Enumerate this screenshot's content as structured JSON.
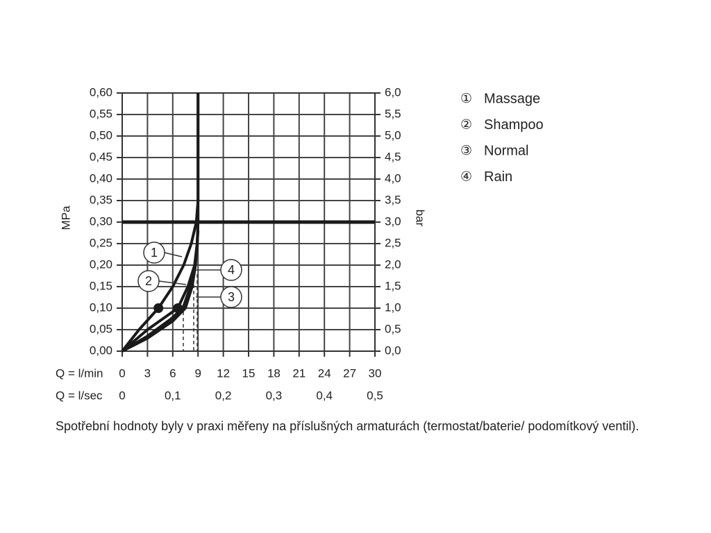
{
  "chart_data": {
    "type": "line",
    "xlabel": "Q = l/min",
    "x2label": "Q = l/sec",
    "ylabel": "MPa",
    "y2label": "bar",
    "xlim": [
      0,
      30
    ],
    "xticks": [
      0,
      3,
      6,
      9,
      12,
      15,
      18,
      21,
      24,
      27,
      30
    ],
    "x2lim": [
      0,
      0.5
    ],
    "x2ticks": [
      0,
      {
        "value": 0.1,
        "label": "0,1"
      },
      {
        "value": 0.2,
        "label": "0,2"
      },
      {
        "value": 0.3,
        "label": "0,3"
      },
      {
        "value": 0.4,
        "label": "0,4"
      },
      {
        "value": 0.5,
        "label": "0,5"
      }
    ],
    "ylim": [
      0,
      0.6
    ],
    "yticks": [
      {
        "value": 0,
        "label": "0,00"
      },
      {
        "value": 0.05,
        "label": "0,05"
      },
      {
        "value": 0.1,
        "label": "0,10"
      },
      {
        "value": 0.15,
        "label": "0,15"
      },
      {
        "value": 0.2,
        "label": "0,20"
      },
      {
        "value": 0.25,
        "label": "0,25"
      },
      {
        "value": 0.3,
        "label": "0,30"
      },
      {
        "value": 0.35,
        "label": "0,35"
      },
      {
        "value": 0.4,
        "label": "0,40"
      },
      {
        "value": 0.45,
        "label": "0,45"
      },
      {
        "value": 0.5,
        "label": "0,50"
      },
      {
        "value": 0.55,
        "label": "0,55"
      },
      {
        "value": 0.6,
        "label": "0,60"
      }
    ],
    "y2lim": [
      0,
      6
    ],
    "y2ticks": [
      {
        "value": 0,
        "label": "0,0"
      },
      {
        "value": 0.5,
        "label": "0,5"
      },
      {
        "value": 1,
        "label": "1,0"
      },
      {
        "value": 1.5,
        "label": "1,5"
      },
      {
        "value": 2,
        "label": "2,0"
      },
      {
        "value": 2.5,
        "label": "2,5"
      },
      {
        "value": 3,
        "label": "3,0"
      },
      {
        "value": 3.5,
        "label": "3,5"
      },
      {
        "value": 4,
        "label": "4,0"
      },
      {
        "value": 4.5,
        "label": "4,5"
      },
      {
        "value": 5,
        "label": "5,0"
      },
      {
        "value": 5.5,
        "label": "5,5"
      },
      {
        "value": 6,
        "label": "6,0"
      }
    ],
    "grid": true,
    "reference_y": 0.3,
    "series": [
      {
        "name": "Massage",
        "symbol": "①",
        "label": "1",
        "color": "#1a1a1a",
        "highlight_index": 2,
        "x": [
          0,
          2,
          4.3,
          6,
          7.3,
          8.2,
          8.8,
          9,
          9
        ],
        "values": [
          0,
          0.05,
          0.1,
          0.15,
          0.2,
          0.25,
          0.3,
          0.35,
          0.6
        ]
      },
      {
        "name": "Shampoo",
        "symbol": "②",
        "label": "2",
        "color": "#1a1a1a",
        "highlight_index": 2,
        "x": [
          0,
          3,
          6.6,
          7.8,
          8.6,
          8.9,
          9,
          9
        ],
        "values": [
          0,
          0.05,
          0.1,
          0.15,
          0.2,
          0.25,
          0.3,
          0.6
        ]
      },
      {
        "name": "Normal",
        "symbol": "③",
        "label": "3",
        "color": "#1a1a1a",
        "x": [
          0,
          3,
          6,
          7.5,
          8.3,
          8.7,
          8.9,
          9
        ],
        "values": [
          0,
          0.03,
          0.07,
          0.1,
          0.15,
          0.2,
          0.25,
          0.3
        ]
      },
      {
        "name": "Rain",
        "symbol": "④",
        "label": "4",
        "color": "#1a1a1a",
        "x": [
          0,
          3,
          5.8,
          7.2,
          8.1,
          8.6,
          8.9,
          9
        ],
        "values": [
          0,
          0.035,
          0.075,
          0.1,
          0.15,
          0.2,
          0.25,
          0.28
        ]
      }
    ],
    "caption": "Spotřební hodnoty byly v praxi měřeny na příslušných armaturách (termostat/baterie/ podomítkový ventil)."
  }
}
